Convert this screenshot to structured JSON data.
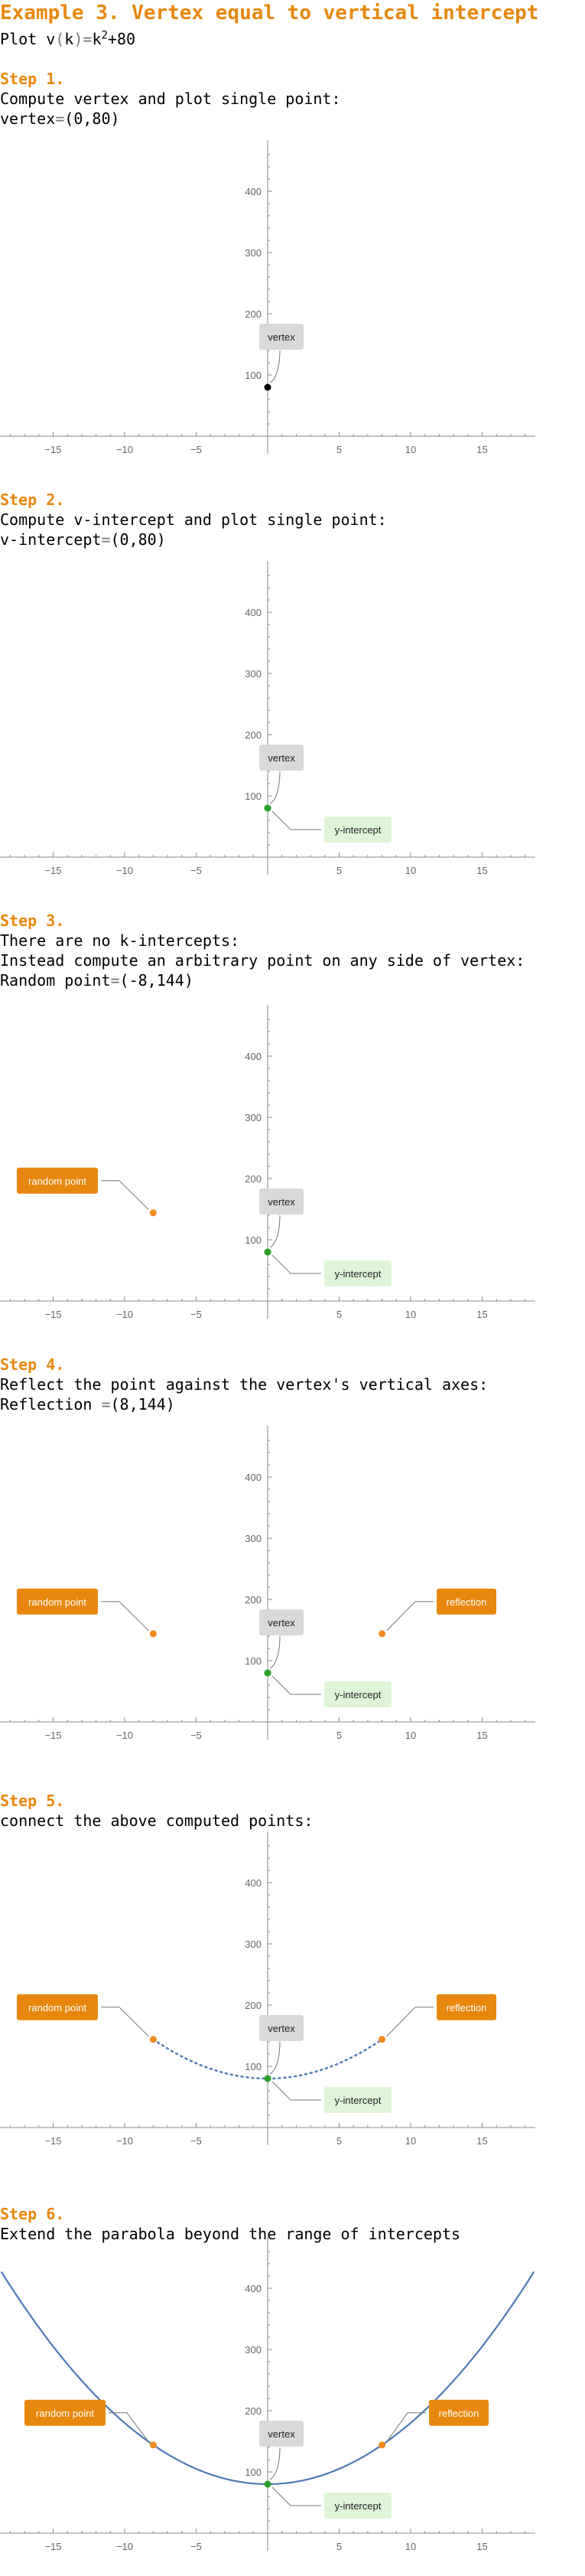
{
  "title": "Example 3. Vertex equal to vertical intercept",
  "plot_prefix": "Plot v",
  "plot_open": "(",
  "plot_var": "k",
  "plot_eq": ")=",
  "plot_k": "k",
  "plot_exp": "2",
  "plot_rest": "+80",
  "steps": [
    {
      "heading": "Step 1.",
      "lines": [
        {
          "label": "Compute vertex and plot single point:"
        },
        {
          "label": "vertex",
          "eq": "=",
          "value": "(0,80)"
        }
      ]
    },
    {
      "heading": "Step 2.",
      "lines": [
        {
          "label": "Compute v-intercept and plot single point:"
        },
        {
          "label": "v-intercept",
          "eq": "=",
          "value": "(0,80)"
        }
      ]
    },
    {
      "heading": "Step 3.",
      "lines": [
        {
          "label": "There are no k-intercepts:"
        },
        {
          "label": "Instead compute an arbitrary point on any side of vertex:"
        },
        {
          "label": "Random point",
          "eq": "=",
          "value": "(-8,144)"
        }
      ]
    },
    {
      "heading": "Step 4.",
      "lines": [
        {
          "label": "Reflect the point against the vertex's vertical axes:"
        },
        {
          "label": "Reflection ",
          "eq": "=",
          "value": "(8,144)"
        }
      ]
    },
    {
      "heading": "Step 5.",
      "lines": [
        {
          "label": "connect the above computed points:"
        }
      ]
    },
    {
      "heading": "Step 6.",
      "lines": [
        {
          "label": "Extend the parabola beyond the range of intercepts"
        }
      ]
    }
  ],
  "colors": {
    "orange": "#e8870e",
    "point_orange": "#ef8a1f",
    "green": "#2ca02c",
    "blue": "#4e79b5",
    "label_gray": "#d9d9d9",
    "label_green": "#dff5d7"
  },
  "chart_data": [
    {
      "type": "scatter",
      "xlim": [
        -19,
        19
      ],
      "ylim": [
        -5,
        470
      ],
      "x_ticks": [
        -15,
        -10,
        -5,
        5,
        10,
        15
      ],
      "y_ticks": [
        100,
        200,
        300,
        400
      ],
      "points": [
        {
          "x": 0,
          "y": 80,
          "label": "vertex",
          "color": "#000000"
        }
      ]
    },
    {
      "type": "scatter",
      "xlim": [
        -19,
        19
      ],
      "ylim": [
        -5,
        470
      ],
      "x_ticks": [
        -15,
        -10,
        -5,
        5,
        10,
        15
      ],
      "y_ticks": [
        100,
        200,
        300,
        400
      ],
      "points": [
        {
          "x": 0,
          "y": 80,
          "label": "vertex",
          "color": "#2ca02c"
        },
        {
          "x": 0,
          "y": 80,
          "label": "y-intercept",
          "color": "#2ca02c"
        }
      ]
    },
    {
      "type": "scatter",
      "xlim": [
        -19,
        19
      ],
      "ylim": [
        -5,
        470
      ],
      "x_ticks": [
        -15,
        -10,
        -5,
        5,
        10,
        15
      ],
      "y_ticks": [
        100,
        200,
        300,
        400
      ],
      "points": [
        {
          "x": -8,
          "y": 144,
          "label": "random point",
          "color": "#ef8a1f"
        },
        {
          "x": 0,
          "y": 80,
          "label": "vertex",
          "color": "#2ca02c"
        },
        {
          "x": 0,
          "y": 80,
          "label": "y-intercept",
          "color": "#2ca02c"
        }
      ]
    },
    {
      "type": "scatter",
      "xlim": [
        -19,
        19
      ],
      "ylim": [
        -5,
        470
      ],
      "x_ticks": [
        -15,
        -10,
        -5,
        5,
        10,
        15
      ],
      "y_ticks": [
        100,
        200,
        300,
        400
      ],
      "points": [
        {
          "x": -8,
          "y": 144,
          "label": "random point",
          "color": "#ef8a1f"
        },
        {
          "x": 8,
          "y": 144,
          "label": "reflection",
          "color": "#ef8a1f"
        },
        {
          "x": 0,
          "y": 80,
          "label": "vertex",
          "color": "#2ca02c"
        },
        {
          "x": 0,
          "y": 80,
          "label": "y-intercept",
          "color": "#2ca02c"
        }
      ]
    },
    {
      "type": "line",
      "xlim": [
        -19,
        19
      ],
      "ylim": [
        -5,
        470
      ],
      "x_ticks": [
        -15,
        -10,
        -5,
        5,
        10,
        15
      ],
      "y_ticks": [
        100,
        200,
        300,
        400
      ],
      "curve": {
        "style": "dotted",
        "from": -8,
        "to": 8
      },
      "points": [
        {
          "x": -8,
          "y": 144,
          "label": "random point",
          "color": "#ef8a1f"
        },
        {
          "x": 8,
          "y": 144,
          "label": "reflection",
          "color": "#ef8a1f"
        },
        {
          "x": 0,
          "y": 80,
          "label": "vertex",
          "color": "#2ca02c"
        },
        {
          "x": 0,
          "y": 80,
          "label": "y-intercept",
          "color": "#2ca02c"
        }
      ]
    },
    {
      "type": "line",
      "xlim": [
        -19,
        19
      ],
      "ylim": [
        -5,
        470
      ],
      "x_ticks": [
        -15,
        -10,
        -5,
        5,
        10,
        15
      ],
      "y_ticks": [
        100,
        200,
        300,
        400
      ],
      "curve": {
        "style": "solid",
        "from": -18.6,
        "to": 18.6
      },
      "points": [
        {
          "x": -8,
          "y": 144,
          "label": "random point",
          "color": "#ef8a1f"
        },
        {
          "x": 8,
          "y": 144,
          "label": "reflection",
          "color": "#ef8a1f"
        },
        {
          "x": 0,
          "y": 80,
          "label": "vertex",
          "color": "#2ca02c"
        },
        {
          "x": 0,
          "y": 80,
          "label": "y-intercept",
          "color": "#2ca02c"
        }
      ]
    }
  ]
}
